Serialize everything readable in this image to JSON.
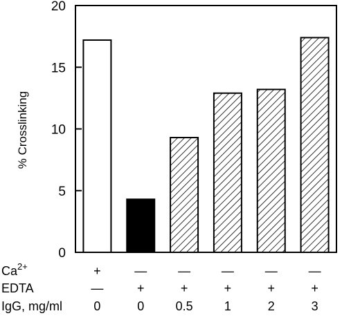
{
  "chart_data": {
    "type": "bar",
    "title": "",
    "xlabel": "",
    "ylabel": "% Crosslinking",
    "ylim": [
      0,
      20
    ],
    "yticks": [
      "0",
      "5",
      "10",
      "15",
      "20"
    ],
    "grid": false,
    "legend": "none",
    "bar_fills": [
      "open",
      "solid",
      "hatched",
      "hatched",
      "hatched",
      "hatched"
    ],
    "values": [
      17.2,
      4.3,
      9.3,
      12.9,
      13.2,
      17.4
    ],
    "conditions": [
      {
        "label": "Ca",
        "superscript": "2+",
        "values": [
          "+",
          "—",
          "—",
          "—",
          "—",
          "—"
        ]
      },
      {
        "label": "EDTA",
        "superscript": "",
        "values": [
          "—",
          "+",
          "+",
          "+",
          "+",
          "+"
        ]
      },
      {
        "label": "IgG, mg/ml",
        "superscript": "",
        "values": [
          "0",
          "0",
          "0.5",
          "1",
          "2",
          "3"
        ]
      }
    ]
  }
}
